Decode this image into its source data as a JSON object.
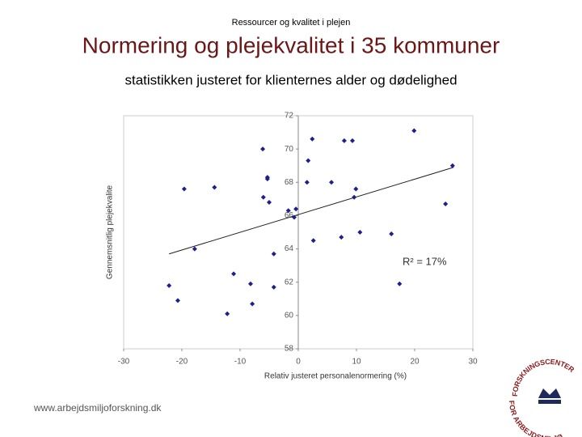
{
  "header": {
    "kicker": "Ressourcer og kvalitet i plejen",
    "title": "Normering og plejekvalitet i 35 kommuner",
    "subtitle": "statistikken justeret for klienternes alder og dødelighed"
  },
  "chart_data": {
    "type": "scatter",
    "x_label": "Relativ justeret personalenormering (%)",
    "y_label": "Gennemsnitlig plejekvalite",
    "annotation": "R² = 17%",
    "color": "#1f1f8c",
    "x": [
      -22.2,
      -20.7,
      -19.6,
      -17.8,
      -14.4,
      -12.2,
      -11.1,
      -8.2,
      -7.9,
      -6.1,
      -6.0,
      -5.3,
      -5.3,
      -5.0,
      -4.2,
      -4.2,
      -1.7,
      -0.7,
      -0.4,
      1.5,
      1.7,
      2.4,
      2.6,
      5.7,
      7.4,
      7.9,
      9.3,
      9.9,
      9.6,
      10.6,
      16.0,
      17.4,
      19.9,
      25.3,
      26.5
    ],
    "values": [
      61.8,
      60.9,
      67.6,
      64.0,
      67.7,
      60.1,
      62.5,
      61.9,
      60.7,
      70.0,
      67.1,
      68.3,
      68.2,
      66.8,
      63.7,
      61.7,
      66.3,
      65.9,
      66.4,
      68.0,
      69.3,
      70.6,
      64.5,
      68.0,
      64.7,
      70.5,
      70.5,
      67.6,
      67.1,
      65.0,
      64.9,
      61.9,
      71.1,
      66.7,
      69.0
    ],
    "trendline": {
      "x": [
        -22.2,
        26.7
      ],
      "y": [
        63.7,
        68.9
      ]
    },
    "xlim": [
      -30,
      30
    ],
    "xticks": [
      -30,
      -20,
      -10,
      0,
      10,
      20,
      30
    ],
    "ylim": [
      58,
      72
    ],
    "yticks": [
      58,
      60,
      62,
      64,
      66,
      68,
      70,
      72
    ]
  },
  "footer": {
    "url": "www.arbejdsmiljoforskning.dk"
  },
  "logo": {
    "top": "FORSKNINGSCENTER",
    "bottom": "FOR ARBEJDSMILJØ"
  }
}
